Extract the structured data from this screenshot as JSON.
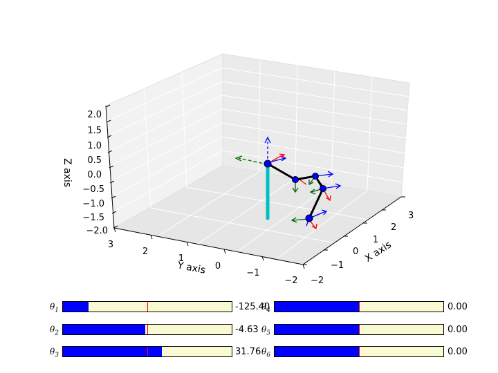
{
  "axes": {
    "x_label": "X axis",
    "y_label": "Y axis",
    "z_label": "Z axis",
    "x_ticks": [
      "−2",
      "−1",
      "0",
      "1",
      "2",
      "3"
    ],
    "y_ticks": [
      "3",
      "2",
      "1",
      "0",
      "−1",
      "−2"
    ],
    "z_ticks": [
      "2.0",
      "1.5",
      "1.0",
      "0.5",
      "0.0",
      "−0.5",
      "−1.0",
      "−1.5",
      "−2.0"
    ]
  },
  "colors": {
    "link": "#000000",
    "joint": "#0000ff",
    "base": "#00bfbf",
    "x_frame": "#ff0000",
    "y_frame": "#006400",
    "z_frame": "#0000ff",
    "slider_fill": "#0000ff",
    "slider_track": "#fafad2",
    "slider_mark": "#ff0000"
  },
  "sliders": [
    {
      "symbol": "θ",
      "index": "1",
      "value": "-125.40",
      "fill": 0.152
    },
    {
      "symbol": "θ",
      "index": "2",
      "value": "-4.63",
      "fill": 0.487
    },
    {
      "symbol": "θ",
      "index": "3",
      "value": "31.76",
      "fill": 0.588
    },
    {
      "symbol": "θ",
      "index": "4",
      "value": "0.00",
      "fill": 0.5
    },
    {
      "symbol": "θ",
      "index": "5",
      "value": "0.00",
      "fill": 0.5
    },
    {
      "symbol": "θ",
      "index": "6",
      "value": "0.00",
      "fill": 0.5
    }
  ]
}
